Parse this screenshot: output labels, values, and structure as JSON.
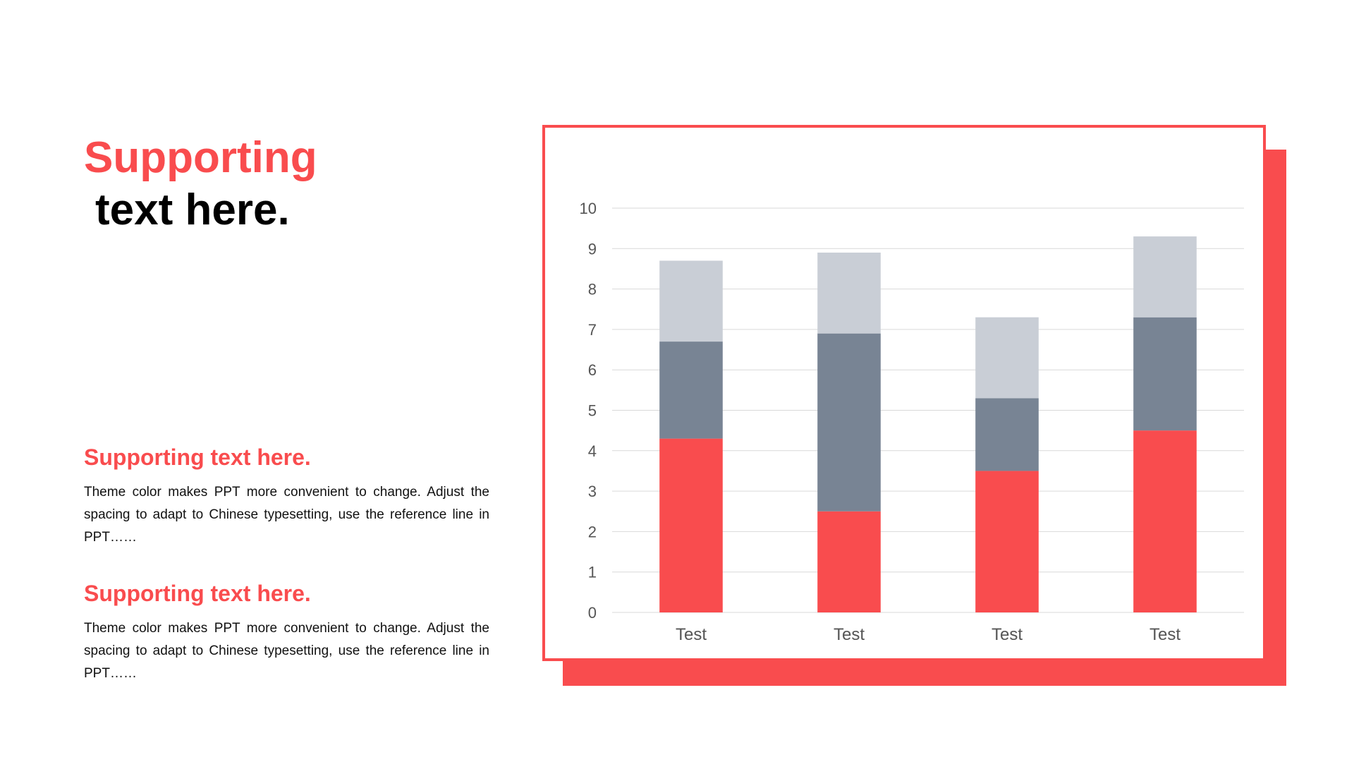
{
  "title": {
    "line1": "Supporting",
    "line2": "text here."
  },
  "sections": [
    {
      "heading": "Supporting text here.",
      "body": "Theme color makes PPT more convenient to change. Adjust the spacing to adapt to Chinese typesetting, use the reference line in PPT……"
    },
    {
      "heading": "Supporting text here.",
      "body": "Theme color makes PPT more convenient to change. Adjust the spacing to adapt to Chinese typesetting, use the reference line in PPT……"
    }
  ],
  "colors": {
    "accent": "#f94c4e",
    "title_dark": "#000000",
    "series_2": "#788494",
    "series_3": "#c9ced6",
    "grid": "#d9d9d9"
  },
  "chart_data": {
    "type": "bar",
    "stacked": true,
    "categories": [
      "Test",
      "Test",
      "Test",
      "Test"
    ],
    "series": [
      {
        "values": [
          4.3,
          2.5,
          3.5,
          4.5
        ],
        "color": "#f94c4e"
      },
      {
        "values": [
          2.4,
          4.4,
          1.8,
          2.8
        ],
        "color": "#788494"
      },
      {
        "values": [
          2.0,
          2.0,
          2.0,
          2.0
        ],
        "color": "#c9ced6"
      }
    ],
    "yticks": [
      "0",
      "1",
      "2",
      "3",
      "4",
      "5",
      "6",
      "7",
      "8",
      "9",
      "10"
    ],
    "ylim": [
      0,
      10
    ],
    "grid": true,
    "legend": "none"
  }
}
